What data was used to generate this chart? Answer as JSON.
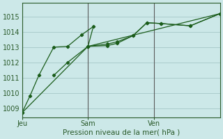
{
  "xlabel": "Pression niveau de la mer( hPa )",
  "bg_color": "#cce8e8",
  "grid_color": "#aacccc",
  "line_color": "#1a5c1a",
  "marker_color": "#1a5c1a",
  "ylim": [
    1008.4,
    1015.9
  ],
  "yticks": [
    1009,
    1010,
    1011,
    1012,
    1013,
    1014,
    1015
  ],
  "xlim": [
    0,
    10
  ],
  "vlines_x": [
    3.33,
    6.67
  ],
  "xtick_positions": [
    0.0,
    3.33,
    6.67
  ],
  "xtick_labels": [
    "Jeu",
    "Sam",
    "Ven"
  ],
  "series1_x": [
    0.0,
    0.4,
    0.85,
    1.6,
    2.3,
    3.0,
    3.6,
    3.33,
    4.3,
    4.8,
    5.6,
    6.3,
    7.0,
    8.5,
    10.0
  ],
  "series1_y": [
    1008.7,
    1009.8,
    1011.15,
    1013.0,
    1013.05,
    1013.8,
    1014.35,
    1013.05,
    1013.1,
    1013.25,
    1013.75,
    1014.6,
    1014.55,
    1014.4,
    1015.2
  ],
  "series2_x": [
    1.6,
    2.3,
    3.33,
    4.3,
    4.8,
    5.6,
    6.3,
    7.0,
    8.5,
    10.0
  ],
  "series2_y": [
    1011.15,
    1012.0,
    1013.05,
    1013.2,
    1013.35,
    1013.75,
    1014.6,
    1014.55,
    1014.4,
    1015.2
  ],
  "series3_x": [
    0.0,
    3.33,
    10.0
  ],
  "series3_y": [
    1008.7,
    1013.05,
    1015.2
  ]
}
